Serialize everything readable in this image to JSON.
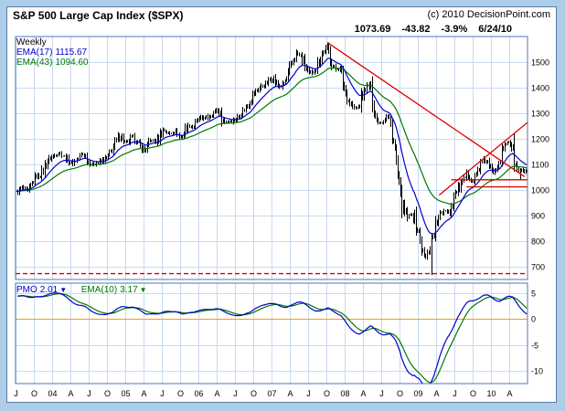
{
  "header": {
    "title": "S&P 500 Large Cap Index ($SPX)",
    "copyright": "(c) 2010 DecisionPoint.com"
  },
  "quote": {
    "last": "1073.69",
    "change": "-43.82",
    "change_pct": "-3.9%",
    "date": "6/24/10"
  },
  "price_legend": {
    "timeframe": "Weekly",
    "ema17": {
      "label": "EMA(17)",
      "value": "1115.67"
    },
    "ema43": {
      "label": "EMA(43)",
      "value": "1094.60"
    }
  },
  "pmo_legend": {
    "pmo": {
      "label": "PMO",
      "value": "2.01",
      "arrow": "▼"
    },
    "ema10": {
      "label": "EMA(10)",
      "value": "3.17",
      "arrow": "▼"
    }
  },
  "colors": {
    "frame": "#aecde9",
    "grid": "#c9daf0",
    "plot_border": "#4a7ab5",
    "bars": "#000000",
    "ema17": "#0000cc",
    "ema43": "#007a00",
    "pmo": "#0000cc",
    "pmo_signal": "#007a00",
    "zero_line": "#ff9900",
    "annotation": "#dd0000",
    "tick_label": "#000000"
  },
  "chart_data": {
    "type": "line",
    "subtype": "weekly-ohlc-bars-with-emas-and-pmo",
    "title": "S&P 500 Large Cap Index ($SPX)",
    "timeframe": "Weekly",
    "as_of": "6/24/10",
    "last_close": 1073.69,
    "x_ticks": [
      "J",
      "O",
      "04",
      "A",
      "J",
      "O",
      "05",
      "A",
      "J",
      "O",
      "06",
      "A",
      "J",
      "O",
      "07",
      "A",
      "J",
      "O",
      "08",
      "A",
      "J",
      "O",
      "09",
      "A",
      "J",
      "O",
      "10",
      "A"
    ],
    "price_axis": {
      "min": 650,
      "max": 1600,
      "ticks": [
        700,
        800,
        900,
        1000,
        1100,
        1200,
        1300,
        1400,
        1500
      ],
      "position": "right"
    },
    "pmo_axis": {
      "min": -12.5,
      "max": 7,
      "ticks": [
        5,
        0,
        -5,
        -10
      ],
      "position": "right"
    },
    "series_legend": [
      {
        "name": "EMA(17)",
        "last": 1115.67
      },
      {
        "name": "EMA(43)",
        "last": 1094.6
      },
      {
        "name": "PMO",
        "last": 2.01
      },
      {
        "name": "PMO EMA(10)",
        "last": 3.17
      }
    ],
    "monthly_closes": {
      "start": "2003-07",
      "end": "2010-06",
      "values": [
        990,
        1008,
        996,
        1051,
        1058,
        1112,
        1131,
        1145,
        1126,
        1107,
        1121,
        1141,
        1102,
        1104,
        1115,
        1130,
        1174,
        1212,
        1181,
        1204,
        1181,
        1157,
        1192,
        1191,
        1234,
        1220,
        1229,
        1207,
        1249,
        1248,
        1280,
        1281,
        1295,
        1311,
        1270,
        1270,
        1277,
        1304,
        1336,
        1378,
        1401,
        1418,
        1438,
        1407,
        1421,
        1482,
        1531,
        1503,
        1455,
        1474,
        1527,
        1549,
        1481,
        1468,
        1379,
        1331,
        1323,
        1386,
        1400,
        1280,
        1267,
        1283,
        1166,
        969,
        896,
        903,
        826,
        735,
        798,
        873,
        919,
        919,
        987,
        1021,
        1057,
        1036,
        1096,
        1115,
        1074,
        1104,
        1169,
        1187,
        1089,
        1074
      ]
    },
    "extremes": [
      {
        "month_index": 51,
        "high": 1576
      },
      {
        "month_index": 68,
        "low": 667
      },
      {
        "month_index": 81,
        "high": 1220
      },
      {
        "month_index": 82,
        "low": 1041
      }
    ],
    "annotations": [
      {
        "kind": "trendline",
        "x1_month": 51.2,
        "price1": 1576,
        "x2_month": 83.5,
        "price2": 1052,
        "dashed": false
      },
      {
        "kind": "trendline",
        "x1_month": 69.5,
        "price1": 980,
        "x2_month": 84.3,
        "price2": 1270,
        "dashed": false
      },
      {
        "kind": "level",
        "price": 1040,
        "x1_month": 71.5,
        "x2_month": 84.3,
        "dashed": false
      },
      {
        "kind": "level",
        "price": 1012,
        "x1_month": 74,
        "x2_month": 84.3,
        "dashed": false
      },
      {
        "kind": "level",
        "price": 673,
        "x1_month": 0,
        "x2_month": 84.3,
        "dashed": true
      }
    ]
  }
}
